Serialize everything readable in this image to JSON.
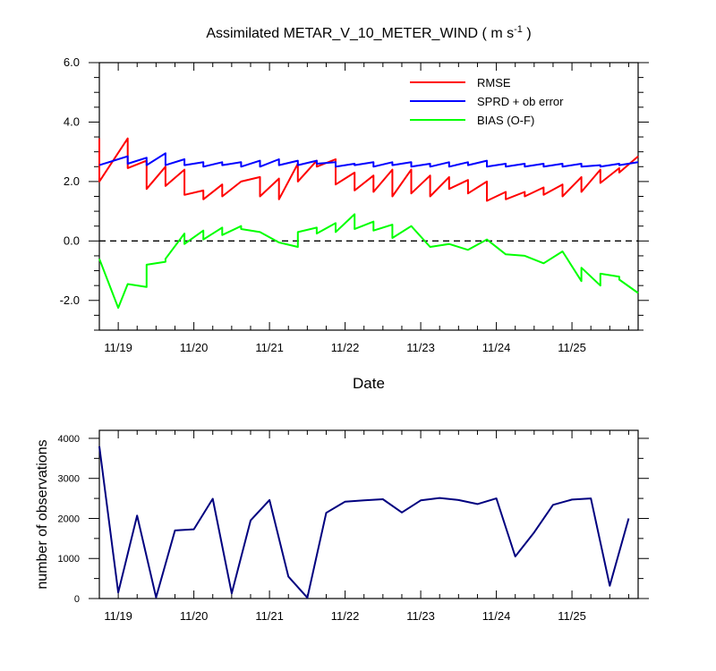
{
  "chart_data": [
    {
      "type": "line",
      "title": "Assimilated METAR_V_10_METER_WIND ( m s",
      "title_sup": "-1",
      "title_end": " )",
      "xlabel": "Date",
      "ylabel": "",
      "x_ticks": [
        "11/19",
        "11/20",
        "11/21",
        "11/22",
        "11/23",
        "11/24",
        "11/25"
      ],
      "y_ticks": [
        "6.0",
        "4.0",
        "2.0",
        "0.0",
        "-2.0"
      ],
      "xlim": [
        "11/18 18:00",
        "11/25 21:00"
      ],
      "ylim": [
        -3,
        6
      ],
      "zero_line": "dashed",
      "legend_position": "top-right",
      "series": [
        {
          "name": "RMSE",
          "color": "#ff0000",
          "x": [
            "11/18 18:00",
            "11/18 18:00",
            "11/19 03:00",
            "11/19 03:00",
            "11/19 09:00",
            "11/19 09:00",
            "11/19 15:00",
            "11/19 15:00",
            "11/19 21:00",
            "11/19 21:00",
            "11/20 03:00",
            "11/20 03:00",
            "11/20 09:00",
            "11/20 09:00",
            "11/20 15:00",
            "11/20 15:00",
            "11/20 21:00",
            "11/20 21:00",
            "11/21 03:00",
            "11/21 03:00",
            "11/21 09:00",
            "11/21 09:00",
            "11/21 15:00",
            "11/21 15:00",
            "11/21 21:00",
            "11/21 21:00",
            "11/22 03:00",
            "11/22 03:00",
            "11/22 09:00",
            "11/22 09:00",
            "11/22 15:00",
            "11/22 15:00",
            "11/22 21:00",
            "11/22 21:00",
            "11/23 03:00",
            "11/23 03:00",
            "11/23 09:00",
            "11/23 09:00",
            "11/23 15:00",
            "11/23 15:00",
            "11/23 21:00",
            "11/23 21:00",
            "11/24 03:00",
            "11/24 03:00",
            "11/24 09:00",
            "11/24 09:00",
            "11/24 15:00",
            "11/24 15:00",
            "11/24 21:00",
            "11/24 21:00",
            "11/25 03:00",
            "11/25 03:00",
            "11/25 09:00",
            "11/25 09:00",
            "11/25 15:00",
            "11/25 15:00",
            "11/25 21:00"
          ],
          "y": [
            3.45,
            2.0,
            3.45,
            2.45,
            2.7,
            1.75,
            2.5,
            1.85,
            2.4,
            1.55,
            1.7,
            1.4,
            1.9,
            1.5,
            2.0,
            2.0,
            2.15,
            1.5,
            2.1,
            1.4,
            2.6,
            2.0,
            2.7,
            2.5,
            2.75,
            1.9,
            2.3,
            1.7,
            2.2,
            1.65,
            2.4,
            1.5,
            2.4,
            1.6,
            2.2,
            1.5,
            2.15,
            1.75,
            2.05,
            1.6,
            2.0,
            1.35,
            1.65,
            1.4,
            1.65,
            1.5,
            1.8,
            1.55,
            1.9,
            1.5,
            2.15,
            1.65,
            2.4,
            1.95,
            2.45,
            2.3,
            2.85
          ]
        },
        {
          "name": "SPRD + ob error",
          "color": "#0000ff",
          "x": [
            "11/18 18:00",
            "11/19 03:00",
            "11/19 03:00",
            "11/19 09:00",
            "11/19 09:00",
            "11/19 15:00",
            "11/19 15:00",
            "11/19 21:00",
            "11/19 21:00",
            "11/20 03:00",
            "11/20 03:00",
            "11/20 09:00",
            "11/20 09:00",
            "11/20 15:00",
            "11/20 15:00",
            "11/20 21:00",
            "11/20 21:00",
            "11/21 03:00",
            "11/21 03:00",
            "11/21 09:00",
            "11/21 09:00",
            "11/21 15:00",
            "11/21 15:00",
            "11/21 21:00",
            "11/21 21:00",
            "11/22 03:00",
            "11/22 03:00",
            "11/22 09:00",
            "11/22 09:00",
            "11/22 15:00",
            "11/22 15:00",
            "11/22 21:00",
            "11/22 21:00",
            "11/23 03:00",
            "11/23 03:00",
            "11/23 09:00",
            "11/23 09:00",
            "11/23 15:00",
            "11/23 15:00",
            "11/23 21:00",
            "11/23 21:00",
            "11/24 03:00",
            "11/24 03:00",
            "11/24 09:00",
            "11/24 09:00",
            "11/24 15:00",
            "11/24 15:00",
            "11/24 21:00",
            "11/24 21:00",
            "11/25 03:00",
            "11/25 03:00",
            "11/25 09:00",
            "11/25 09:00",
            "11/25 15:00",
            "11/25 15:00",
            "11/25 21:00"
          ],
          "y": [
            2.55,
            2.85,
            2.6,
            2.8,
            2.55,
            2.95,
            2.55,
            2.75,
            2.55,
            2.65,
            2.5,
            2.65,
            2.55,
            2.65,
            2.5,
            2.7,
            2.5,
            2.75,
            2.55,
            2.7,
            2.55,
            2.7,
            2.6,
            2.65,
            2.5,
            2.6,
            2.55,
            2.65,
            2.5,
            2.65,
            2.55,
            2.65,
            2.5,
            2.6,
            2.5,
            2.65,
            2.5,
            2.65,
            2.55,
            2.7,
            2.5,
            2.6,
            2.5,
            2.6,
            2.5,
            2.6,
            2.5,
            2.6,
            2.5,
            2.6,
            2.5,
            2.55,
            2.5,
            2.6,
            2.55,
            2.65
          ]
        },
        {
          "name": "BIAS (O-F)",
          "color": "#00ff00",
          "x": [
            "11/18 18:00",
            "11/19 00:00",
            "11/19 03:00",
            "11/19 09:00",
            "11/19 09:00",
            "11/19 15:00",
            "11/19 15:00",
            "11/19 21:00",
            "11/19 21:00",
            "11/20 03:00",
            "11/20 03:00",
            "11/20 09:00",
            "11/20 09:00",
            "11/20 15:00",
            "11/20 15:00",
            "11/20 21:00",
            "11/21 03:00",
            "11/21 09:00",
            "11/21 09:00",
            "11/21 15:00",
            "11/21 15:00",
            "11/21 21:00",
            "11/21 21:00",
            "11/22 03:00",
            "11/22 03:00",
            "11/22 09:00",
            "11/22 09:00",
            "11/22 15:00",
            "11/22 15:00",
            "11/22 21:00",
            "11/23 03:00",
            "11/23 09:00",
            "11/23 15:00",
            "11/23 21:00",
            "11/24 03:00",
            "11/24 09:00",
            "11/24 15:00",
            "11/24 21:00",
            "11/25 03:00",
            "11/25 03:00",
            "11/25 09:00",
            "11/25 09:00",
            "11/25 15:00",
            "11/25 15:00",
            "11/25 21:00"
          ],
          "y": [
            -0.6,
            -2.25,
            -1.45,
            -1.55,
            -0.8,
            -0.7,
            -0.6,
            0.25,
            -0.1,
            0.35,
            0.05,
            0.45,
            0.2,
            0.5,
            0.4,
            0.3,
            -0.05,
            -0.2,
            0.3,
            0.45,
            0.25,
            0.6,
            0.3,
            0.9,
            0.4,
            0.65,
            0.35,
            0.55,
            0.1,
            0.5,
            -0.2,
            -0.1,
            -0.3,
            0.05,
            -0.45,
            -0.5,
            -0.75,
            -0.35,
            -1.35,
            -0.9,
            -1.5,
            -1.1,
            -1.2,
            -1.3,
            -1.75
          ]
        }
      ]
    },
    {
      "type": "line",
      "title": "",
      "xlabel": "",
      "ylabel": "number of observations",
      "x_ticks": [
        "11/19",
        "11/20",
        "11/21",
        "11/22",
        "11/23",
        "11/24",
        "11/25"
      ],
      "y_ticks": [
        "4000",
        "3000",
        "2000",
        "1000",
        "0"
      ],
      "xlim": [
        "11/18 18:00",
        "11/25 21:00"
      ],
      "ylim": [
        0,
        4200
      ],
      "series": [
        {
          "name": "",
          "color": "#00007f",
          "x": [
            "11/18 18:00",
            "11/19 00:00",
            "11/19 06:00",
            "11/19 12:00",
            "11/19 18:00",
            "11/20 00:00",
            "11/20 06:00",
            "11/20 12:00",
            "11/20 18:00",
            "11/21 00:00",
            "11/21 06:00",
            "11/21 12:00",
            "11/21 18:00",
            "11/22 00:00",
            "11/22 06:00",
            "11/22 12:00",
            "11/22 18:00",
            "11/23 00:00",
            "11/23 06:00",
            "11/23 12:00",
            "11/23 18:00",
            "11/24 00:00",
            "11/24 06:00",
            "11/24 12:00",
            "11/24 18:00",
            "11/25 00:00",
            "11/25 06:00",
            "11/25 12:00",
            "11/25 18:00"
          ],
          "y": [
            3800,
            150,
            2070,
            30,
            1700,
            1730,
            2490,
            130,
            1950,
            2460,
            550,
            20,
            2140,
            2420,
            2450,
            2480,
            2150,
            2450,
            2510,
            2460,
            2360,
            2500,
            1050,
            1650,
            2340,
            2470,
            2500,
            320,
            2000
          ]
        }
      ]
    }
  ]
}
